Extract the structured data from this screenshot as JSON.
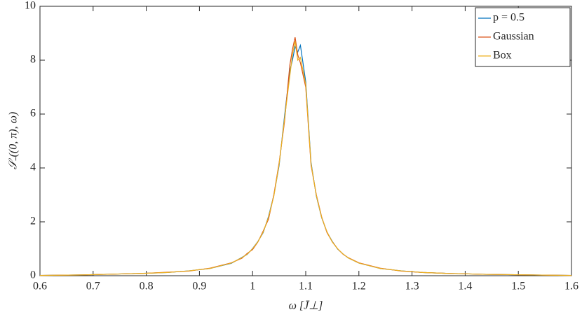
{
  "chart_data": {
    "type": "line",
    "xlabel": "ω [J̄⊥]",
    "ylabel": "𝒮₋((0, π), ω)",
    "x": [
      0.6,
      0.64,
      0.68,
      0.72,
      0.76,
      0.8,
      0.84,
      0.88,
      0.92,
      0.96,
      0.98,
      0.99,
      1.0,
      1.01,
      1.02,
      1.03,
      1.04,
      1.05,
      1.06,
      1.07,
      1.075,
      1.08,
      1.085,
      1.09,
      1.1,
      1.11,
      1.12,
      1.13,
      1.14,
      1.15,
      1.16,
      1.17,
      1.18,
      1.2,
      1.24,
      1.28,
      1.32,
      1.36,
      1.4,
      1.44,
      1.48,
      1.52,
      1.56,
      1.6
    ],
    "series": [
      {
        "name": "p = 0.5",
        "color": "#0072BD",
        "values": [
          0.01,
          0.02,
          0.03,
          0.05,
          0.07,
          0.09,
          0.12,
          0.18,
          0.27,
          0.46,
          0.68,
          0.79,
          1.01,
          1.27,
          1.6,
          2.2,
          2.98,
          4.1,
          5.9,
          7.6,
          8.0,
          8.5,
          8.3,
          8.55,
          7.2,
          4.2,
          2.95,
          2.15,
          1.62,
          1.27,
          0.99,
          0.81,
          0.66,
          0.47,
          0.27,
          0.18,
          0.12,
          0.09,
          0.07,
          0.05,
          0.04,
          0.03,
          0.02,
          0.01
        ]
      },
      {
        "name": "Gaussian",
        "color": "#D95319",
        "values": [
          0.01,
          0.02,
          0.03,
          0.05,
          0.07,
          0.09,
          0.13,
          0.17,
          0.28,
          0.48,
          0.65,
          0.83,
          0.97,
          1.25,
          1.66,
          2.1,
          3.0,
          4.2,
          5.7,
          7.8,
          8.4,
          8.85,
          8.2,
          7.9,
          7.0,
          4.1,
          3.0,
          2.18,
          1.6,
          1.26,
          1.0,
          0.8,
          0.67,
          0.48,
          0.28,
          0.17,
          0.12,
          0.09,
          0.07,
          0.05,
          0.04,
          0.03,
          0.02,
          0.01
        ]
      },
      {
        "name": "Box",
        "color": "#EDB120",
        "values": [
          0.01,
          0.02,
          0.03,
          0.05,
          0.07,
          0.09,
          0.12,
          0.18,
          0.27,
          0.47,
          0.67,
          0.8,
          1.0,
          1.26,
          1.62,
          2.17,
          2.95,
          4.15,
          5.8,
          7.4,
          8.2,
          8.7,
          8.0,
          8.1,
          7.1,
          4.15,
          2.97,
          2.16,
          1.63,
          1.25,
          1.0,
          0.81,
          0.66,
          0.47,
          0.27,
          0.18,
          0.12,
          0.09,
          0.07,
          0.05,
          0.04,
          0.03,
          0.02,
          0.01
        ]
      }
    ],
    "xlim": [
      0.6,
      1.6
    ],
    "xticks": [
      0.6,
      0.7,
      0.8,
      0.9,
      1,
      1.1,
      1.2,
      1.3,
      1.4,
      1.5,
      1.6
    ],
    "ylim": [
      0,
      10
    ],
    "yticks": [
      0,
      2,
      4,
      6,
      8,
      10
    ],
    "grid": false,
    "legend": "top-right"
  }
}
